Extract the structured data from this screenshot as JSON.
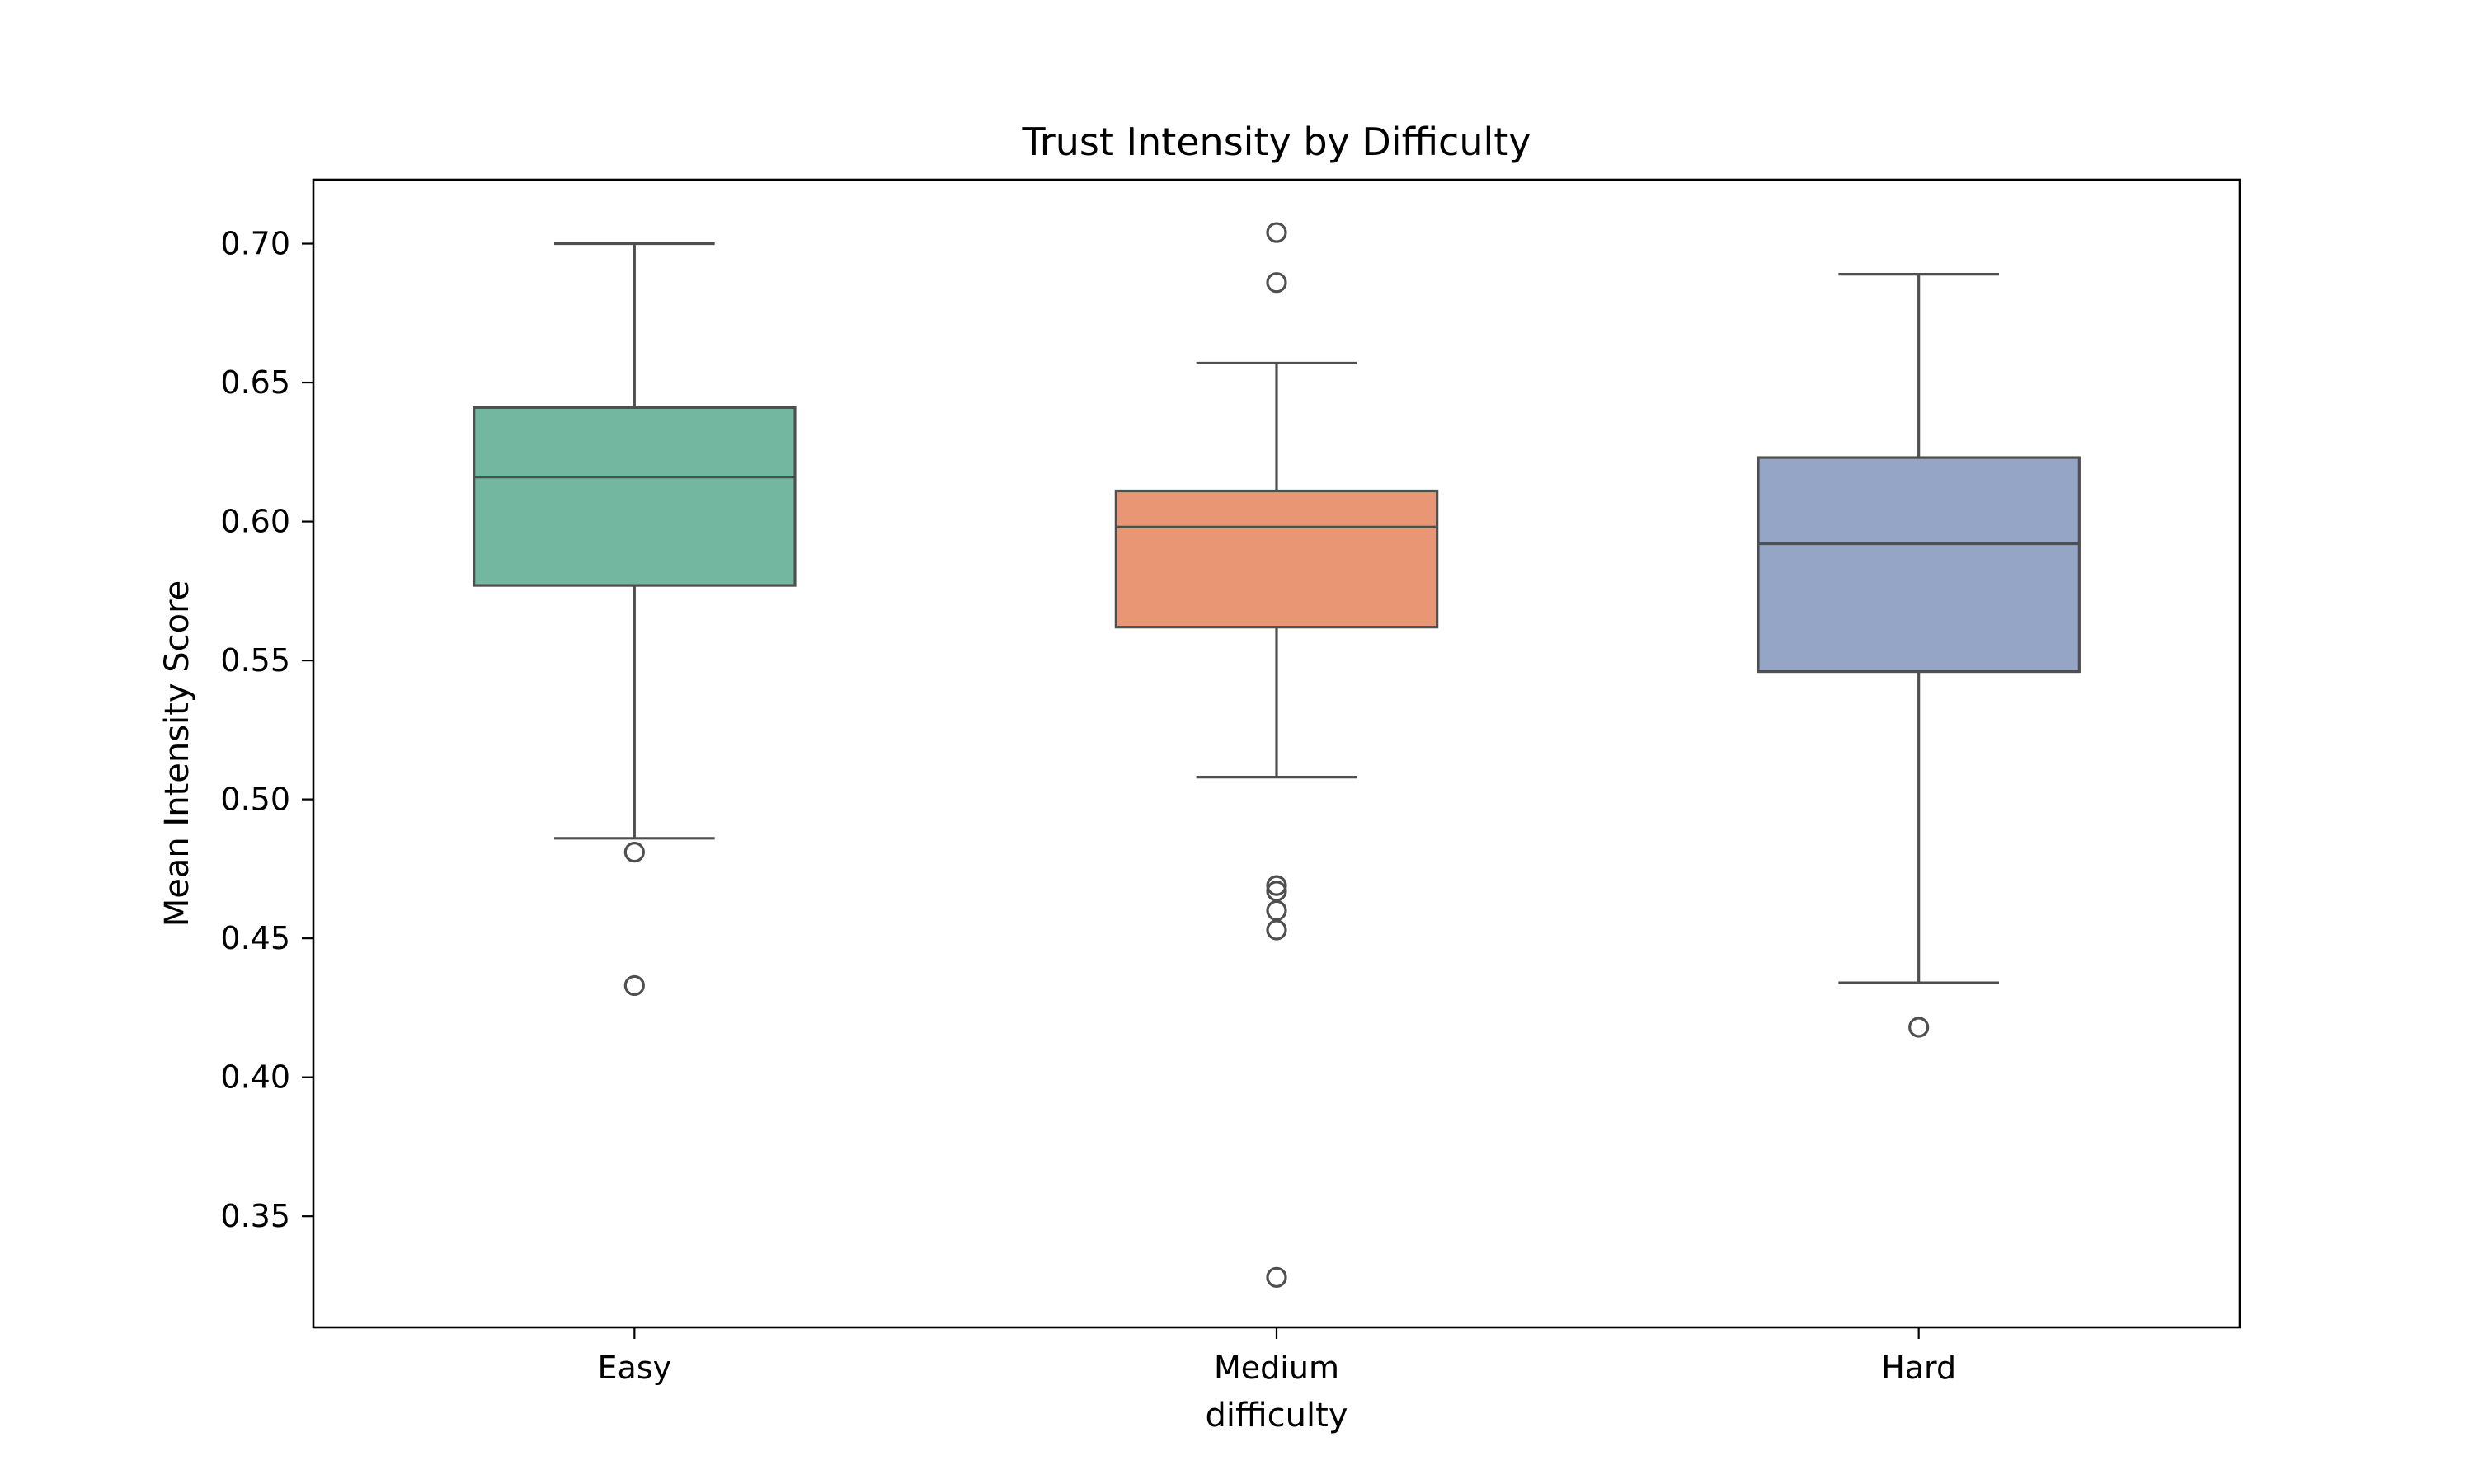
{
  "chart_data": {
    "type": "box",
    "title": "Trust Intensity by Difficulty",
    "xlabel": "difficulty",
    "ylabel": "Mean Intensity Score",
    "ylim": [
      0.31,
      0.723
    ],
    "yticks": [
      "0.35",
      "0.40",
      "0.45",
      "0.50",
      "0.55",
      "0.60",
      "0.65",
      "0.70"
    ],
    "grid": false,
    "categories": [
      "Easy",
      "Medium",
      "Hard"
    ],
    "boxes": [
      {
        "category": "Easy",
        "color": "#74b7a1",
        "whisker_low": 0.486,
        "q1": 0.577,
        "median": 0.616,
        "q3": 0.641,
        "whisker_high": 0.7,
        "outliers": [
          0.481,
          0.433
        ]
      },
      {
        "category": "Medium",
        "color": "#e99674",
        "whisker_low": 0.508,
        "q1": 0.562,
        "median": 0.598,
        "q3": 0.611,
        "whisker_high": 0.657,
        "outliers": [
          0.704,
          0.686,
          0.469,
          0.467,
          0.46,
          0.453,
          0.328
        ]
      },
      {
        "category": "Hard",
        "color": "#95a5c6",
        "whisker_low": 0.434,
        "q1": 0.546,
        "median": 0.592,
        "q3": 0.623,
        "whisker_high": 0.689,
        "outliers": [
          0.418
        ]
      }
    ]
  }
}
